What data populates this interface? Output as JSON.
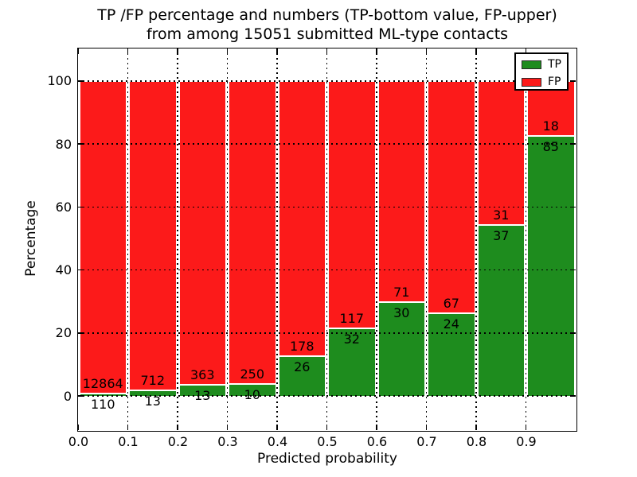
{
  "chart_data": {
    "type": "bar",
    "stacked": true,
    "title_line1": "TP /FP percentage and numbers (TP-bottom value, FP-upper)",
    "title_line2": "from among 15051 submitted ML-type contacts",
    "xlabel": "Predicted probability",
    "ylabel": "Percentage",
    "total_submitted_contacts": 15051,
    "x_tick_labels": [
      "0.0",
      "0.1",
      "0.2",
      "0.3",
      "0.4",
      "0.5",
      "0.6",
      "0.7",
      "0.8",
      "0.9"
    ],
    "y_tick_values": [
      0,
      20,
      40,
      60,
      80,
      100
    ],
    "xlim": [
      0.0,
      1.0
    ],
    "ylim": [
      -10.8,
      110.3
    ],
    "grid": true,
    "bar_bin_width": 0.1,
    "categories": [
      "0.0-0.1",
      "0.1-0.2",
      "0.2-0.3",
      "0.3-0.4",
      "0.4-0.5",
      "0.5-0.6",
      "0.6-0.7",
      "0.7-0.8",
      "0.8-0.9",
      "0.9-1.0"
    ],
    "series": [
      {
        "name": "TP",
        "color": "#1e8c1e",
        "counts": [
          110,
          13,
          13,
          10,
          26,
          32,
          30,
          24,
          37,
          85
        ]
      },
      {
        "name": "FP",
        "color": "#fc1a1a",
        "counts": [
          12864,
          712,
          363,
          250,
          178,
          117,
          71,
          67,
          31,
          18
        ]
      }
    ],
    "tp_percent_of_bin": [
      0.85,
      1.79,
      3.46,
      3.85,
      12.75,
      21.48,
      29.7,
      26.37,
      54.41,
      82.52
    ],
    "bars_stack_to_percent": 100,
    "legend": {
      "position": "upper-right",
      "entries": [
        {
          "label": "TP",
          "color": "#1e8c1e"
        },
        {
          "label": "FP",
          "color": "#fc1a1a"
        }
      ]
    },
    "colors": {
      "tp_green": "#1e8c1e",
      "fp_red": "#fc1a1a",
      "grid": "#000000",
      "background": "#ffffff"
    }
  }
}
